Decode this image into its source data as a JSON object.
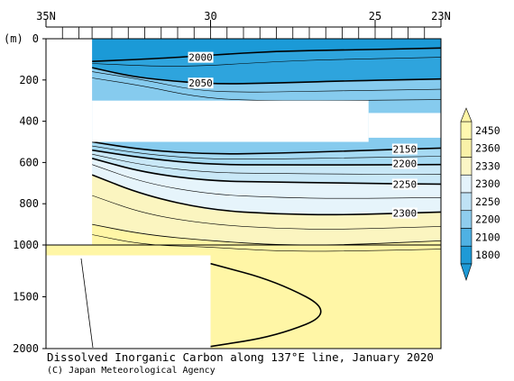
{
  "chart_data": {
    "type": "heatmap",
    "title": "Dissolved Inorganic Carbon along 137°E line, January 2020",
    "credit": "(C) Japan Meteorological Agency",
    "x_tick_labels": [
      "35N",
      "30",
      "25",
      "23N"
    ],
    "x_ticks": [
      35,
      30,
      25,
      23
    ],
    "x_range": [
      35,
      23
    ],
    "y_unit_label": "(m)",
    "y_tick_labels": [
      "0",
      "200",
      "400",
      "600",
      "800",
      "1000",
      "1500",
      "2000"
    ],
    "y_ticks": [
      0,
      200,
      400,
      600,
      800,
      1000,
      1500,
      2000
    ],
    "y_range": [
      0,
      2000
    ],
    "y_axis_break_at": 1000,
    "colorbar": {
      "labels": [
        "2450",
        "2360",
        "2330",
        "2300",
        "2250",
        "2200",
        "2100",
        "1800"
      ],
      "colors": [
        "#fff8b0",
        "#f9f1a8",
        "#fbf6c6",
        "#e4f3fb",
        "#bfe2f5",
        "#8fcdee",
        "#4fb1e3",
        "#1e9ad6"
      ]
    },
    "contour_labels": [
      "2000",
      "2050",
      "2150",
      "2200",
      "2250",
      "2300"
    ],
    "contour_label_positions": [
      {
        "text": "2000",
        "lat": 30.3,
        "depth": 90
      },
      {
        "text": "2050",
        "lat": 30.3,
        "depth": 215
      },
      {
        "text": "2150",
        "lat": 24.1,
        "depth": 535
      },
      {
        "text": "2200",
        "lat": 24.1,
        "depth": 605
      },
      {
        "text": "2250",
        "lat": 24.1,
        "depth": 705
      },
      {
        "text": "2300",
        "lat": 24.1,
        "depth": 845
      }
    ],
    "contours": [
      {
        "value": 2000,
        "bold": true,
        "points": [
          [
            33.6,
            110
          ],
          [
            31.5,
            95
          ],
          [
            30,
            80
          ],
          [
            28,
            60
          ],
          [
            26,
            55
          ],
          [
            23,
            45
          ]
        ]
      },
      {
        "value": 2050,
        "bold": true,
        "points": [
          [
            33.6,
            140
          ],
          [
            32.5,
            180
          ],
          [
            31.5,
            200
          ],
          [
            30,
            220
          ],
          [
            28,
            215
          ],
          [
            26,
            205
          ],
          [
            23,
            195
          ]
        ]
      },
      {
        "value": 2150,
        "bold": true,
        "points": [
          [
            33.6,
            500
          ],
          [
            32,
            540
          ],
          [
            30,
            560
          ],
          [
            28,
            555
          ],
          [
            26,
            545
          ],
          [
            23,
            530
          ]
        ]
      },
      {
        "value": 2200,
        "bold": true,
        "points": [
          [
            33.6,
            540
          ],
          [
            32,
            580
          ],
          [
            30,
            610
          ],
          [
            28,
            612
          ],
          [
            26,
            612
          ],
          [
            23,
            610
          ]
        ]
      },
      {
        "value": 2250,
        "bold": true,
        "points": [
          [
            33.6,
            580
          ],
          [
            32,
            650
          ],
          [
            30,
            690
          ],
          [
            28,
            695
          ],
          [
            26,
            700
          ],
          [
            23,
            705
          ]
        ]
      },
      {
        "value": 2300,
        "bold": true,
        "points": [
          [
            33.6,
            660
          ],
          [
            32,
            760
          ],
          [
            30,
            830
          ],
          [
            28,
            850
          ],
          [
            26,
            855
          ],
          [
            23,
            840
          ]
        ]
      },
      {
        "value": 2330,
        "bold": false,
        "points": [
          [
            33.6,
            900
          ],
          [
            32,
            950
          ],
          [
            30,
            980
          ],
          [
            28,
            1000
          ],
          [
            26,
            1000
          ],
          [
            23,
            980
          ]
        ]
      },
      {
        "value": 2360,
        "bold": true,
        "points": [
          [
            30,
            1180
          ],
          [
            28,
            1350
          ],
          [
            26.2,
            1650
          ],
          [
            28,
            1880
          ],
          [
            30,
            1980
          ]
        ]
      }
    ],
    "no_data_regions": [
      {
        "lat": [
          35,
          33.6
        ],
        "depth": [
          0,
          1000
        ]
      },
      {
        "lat": [
          35,
          30
        ],
        "depth": [
          1100,
          2000
        ]
      },
      {
        "lat": [
          33.6,
          25.2
        ],
        "depth": [
          300,
          500
        ]
      },
      {
        "lat": [
          25.2,
          23
        ],
        "depth": [
          360,
          480
        ]
      }
    ]
  }
}
